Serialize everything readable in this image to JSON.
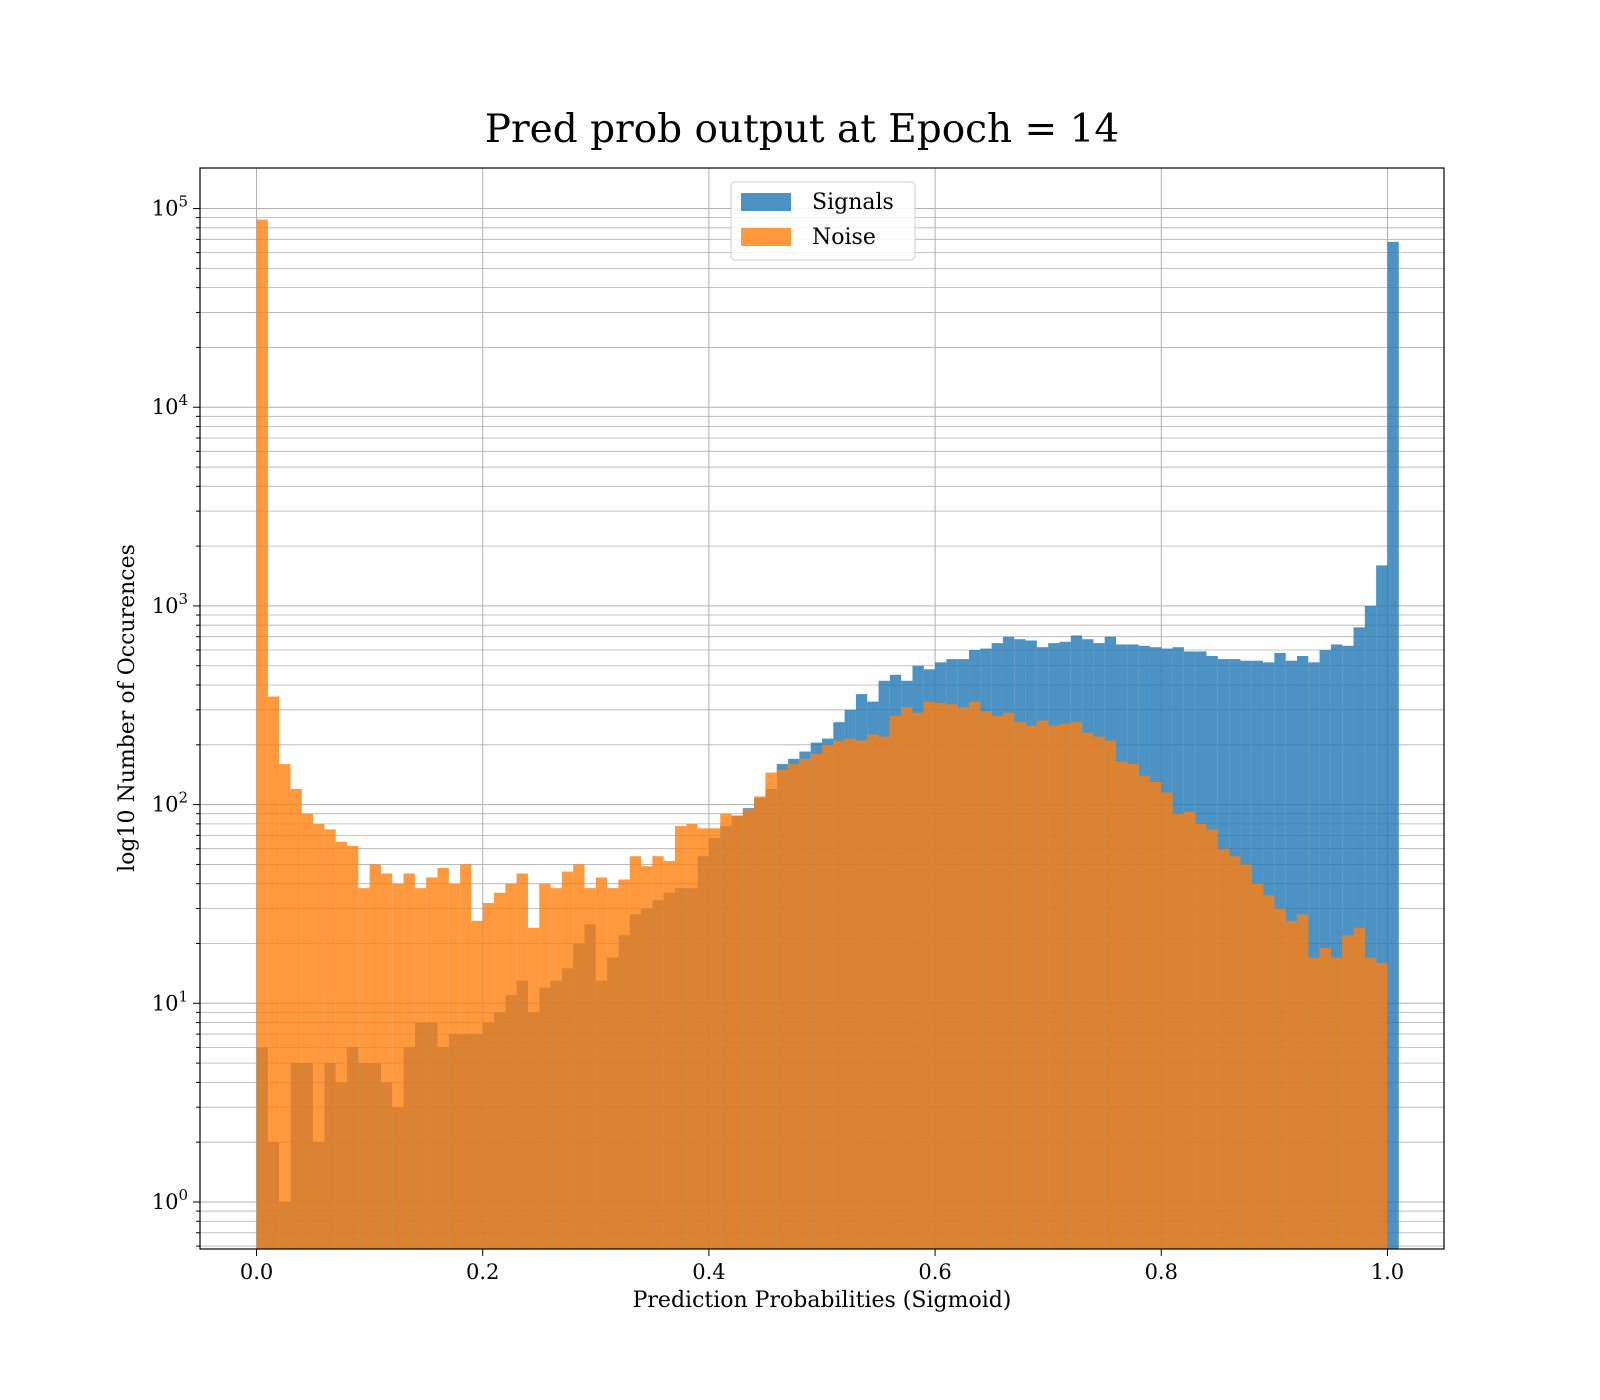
{
  "chart_data": {
    "type": "bar",
    "title": "Pred prob output at Epoch = 14",
    "xlabel": "Prediction Probabilities (Sigmoid)",
    "ylabel": "log10 Number of Occurences",
    "xlim": [
      -0.05,
      1.05
    ],
    "ylim": [
      0.58,
      160000
    ],
    "yscale": "log",
    "grid": true,
    "legend_placement": "upper center",
    "x_ticks": [
      {
        "value": 0.0,
        "label": "0.0"
      },
      {
        "value": 0.2,
        "label": "0.2"
      },
      {
        "value": 0.4,
        "label": "0.4"
      },
      {
        "value": 0.6,
        "label": "0.6"
      },
      {
        "value": 0.8,
        "label": "0.8"
      },
      {
        "value": 1.0,
        "label": "1.0"
      }
    ],
    "y_ticks": [
      {
        "value": 1,
        "base": "10",
        "exp": "0"
      },
      {
        "value": 10,
        "base": "10",
        "exp": "1"
      },
      {
        "value": 100,
        "base": "10",
        "exp": "2"
      },
      {
        "value": 1000,
        "base": "10",
        "exp": "3"
      },
      {
        "value": 10000,
        "base": "10",
        "exp": "4"
      },
      {
        "value": 100000,
        "base": "10",
        "exp": "5"
      }
    ],
    "bin_start": 0.0,
    "bin_width": 0.01,
    "series": [
      {
        "name": "Signals",
        "color": "#1f77b4",
        "opacity": 0.8,
        "values": [
          6,
          2,
          1,
          5,
          5,
          2,
          5,
          4,
          6,
          5,
          5,
          4,
          3,
          6,
          8,
          8,
          6,
          7,
          7,
          7,
          8,
          9,
          11,
          13,
          9,
          12,
          13,
          15,
          20,
          25,
          13,
          17,
          22,
          28,
          30,
          33,
          36,
          38,
          38,
          55,
          68,
          78,
          88,
          96,
          108,
          120,
          160,
          170,
          185,
          205,
          215,
          260,
          300,
          360,
          330,
          420,
          450,
          420,
          500,
          480,
          520,
          540,
          540,
          600,
          610,
          650,
          700,
          680,
          670,
          620,
          650,
          660,
          710,
          680,
          650,
          700,
          640,
          640,
          630,
          620,
          610,
          620,
          590,
          590,
          560,
          540,
          540,
          530,
          530,
          520,
          580,
          530,
          560,
          520,
          600,
          640,
          630,
          780,
          1000,
          1600,
          68000
        ]
      },
      {
        "name": "Noise",
        "color": "#ff7f0e",
        "opacity": 0.8,
        "values": [
          88000,
          350,
          160,
          120,
          90,
          80,
          75,
          65,
          62,
          38,
          50,
          45,
          40,
          45,
          38,
          43,
          48,
          40,
          50,
          26,
          32,
          36,
          40,
          45,
          24,
          40,
          38,
          46,
          50,
          38,
          43,
          38,
          42,
          55,
          49,
          55,
          52,
          78,
          80,
          76,
          76,
          90,
          88,
          95,
          110,
          145,
          150,
          160,
          170,
          180,
          200,
          210,
          215,
          210,
          225,
          220,
          280,
          310,
          290,
          330,
          325,
          320,
          310,
          330,
          295,
          280,
          290,
          260,
          250,
          265,
          250,
          255,
          260,
          230,
          220,
          210,
          165,
          160,
          140,
          130,
          115,
          90,
          92,
          80,
          75,
          60,
          55,
          50,
          40,
          35,
          30,
          26,
          28,
          17,
          19,
          17,
          22,
          24,
          17,
          16,
          0
        ]
      }
    ]
  }
}
